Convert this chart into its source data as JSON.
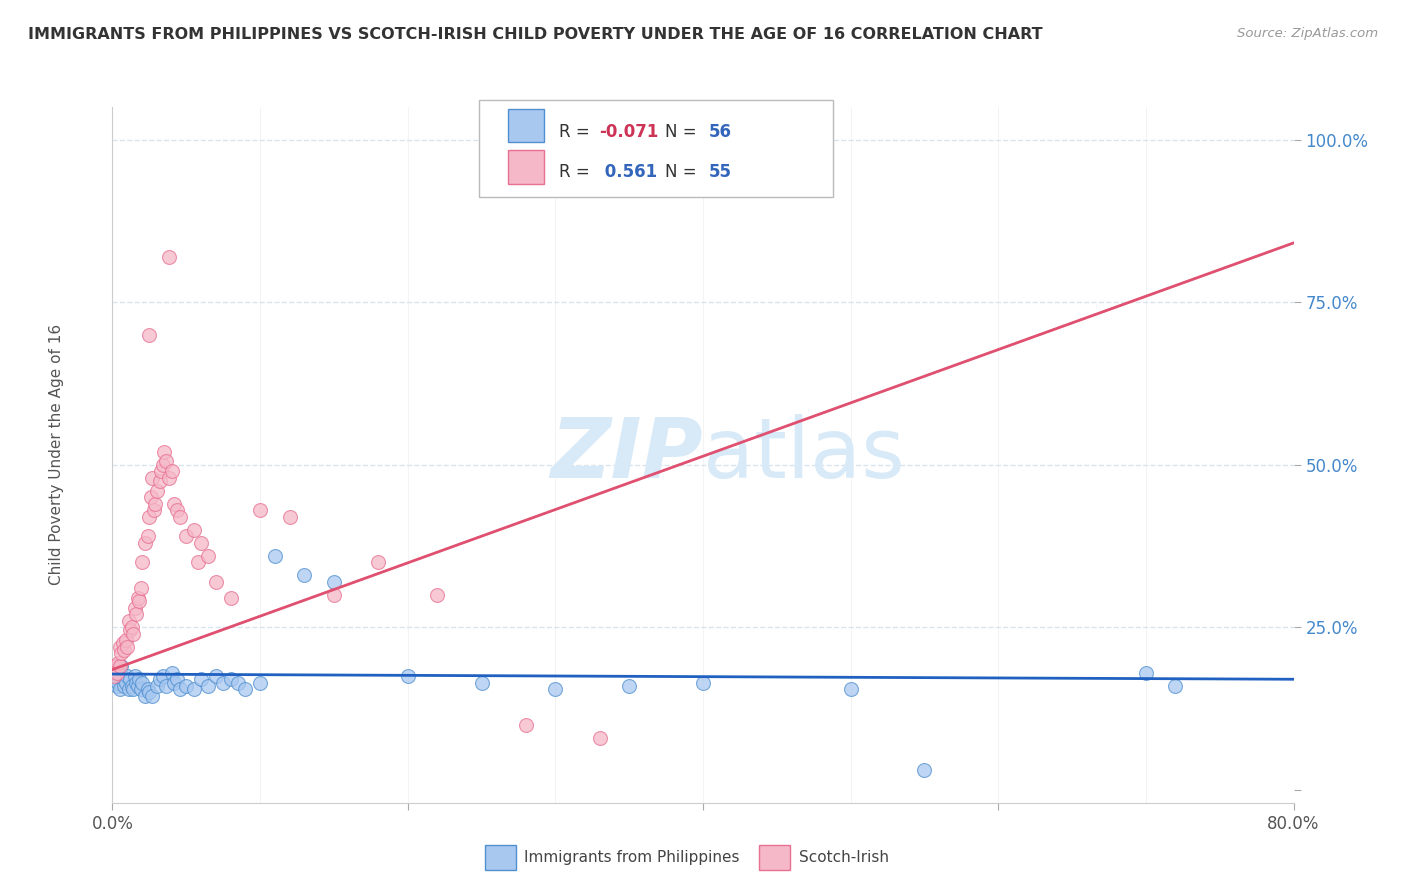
{
  "title": "IMMIGRANTS FROM PHILIPPINES VS SCOTCH-IRISH CHILD POVERTY UNDER THE AGE OF 16 CORRELATION CHART",
  "source": "Source: ZipAtlas.com",
  "ylabel": "Child Poverty Under the Age of 16",
  "xlim": [
    0.0,
    0.8
  ],
  "ylim": [
    -0.02,
    1.05
  ],
  "r_blue": -0.071,
  "n_blue": 56,
  "r_pink": 0.561,
  "n_pink": 55,
  "label_blue": "Immigrants from Philippines",
  "label_pink": "Scotch-Irish",
  "blue_color": "#a8c8f0",
  "pink_color": "#f5b8c8",
  "blue_edge_color": "#5090d0",
  "pink_edge_color": "#e87090",
  "blue_line_color": "#2060c0",
  "pink_line_color": "#e05070",
  "diag_line_color": "#d0a0b0",
  "watermark_color": "#d8eaf8",
  "background_color": "#ffffff",
  "grid_color": "#d8e4ee",
  "title_color": "#333333",
  "source_color": "#999999",
  "ytick_color": "#4488cc",
  "xtick_color": "#555555",
  "legend_text_color": "#3366bb",
  "legend_r_neg_color": "#cc3355",
  "yticks": [
    0.0,
    0.25,
    0.5,
    0.75,
    1.0
  ],
  "ytick_labels": [
    "",
    "25.0%",
    "50.0%",
    "75.0%",
    "100.0%"
  ],
  "blue_scatter": [
    [
      0.001,
      0.175
    ],
    [
      0.002,
      0.185
    ],
    [
      0.003,
      0.17
    ],
    [
      0.003,
      0.16
    ],
    [
      0.004,
      0.165
    ],
    [
      0.005,
      0.18
    ],
    [
      0.005,
      0.155
    ],
    [
      0.006,
      0.19
    ],
    [
      0.007,
      0.17
    ],
    [
      0.008,
      0.16
    ],
    [
      0.009,
      0.165
    ],
    [
      0.01,
      0.175
    ],
    [
      0.011,
      0.155
    ],
    [
      0.012,
      0.17
    ],
    [
      0.013,
      0.16
    ],
    [
      0.014,
      0.155
    ],
    [
      0.015,
      0.175
    ],
    [
      0.016,
      0.165
    ],
    [
      0.017,
      0.16
    ],
    [
      0.018,
      0.17
    ],
    [
      0.019,
      0.155
    ],
    [
      0.02,
      0.165
    ],
    [
      0.022,
      0.145
    ],
    [
      0.024,
      0.155
    ],
    [
      0.025,
      0.15
    ],
    [
      0.027,
      0.145
    ],
    [
      0.03,
      0.16
    ],
    [
      0.032,
      0.17
    ],
    [
      0.034,
      0.175
    ],
    [
      0.036,
      0.16
    ],
    [
      0.04,
      0.18
    ],
    [
      0.042,
      0.165
    ],
    [
      0.044,
      0.17
    ],
    [
      0.046,
      0.155
    ],
    [
      0.05,
      0.16
    ],
    [
      0.055,
      0.155
    ],
    [
      0.06,
      0.17
    ],
    [
      0.065,
      0.16
    ],
    [
      0.07,
      0.175
    ],
    [
      0.075,
      0.165
    ],
    [
      0.08,
      0.17
    ],
    [
      0.085,
      0.165
    ],
    [
      0.09,
      0.155
    ],
    [
      0.1,
      0.165
    ],
    [
      0.11,
      0.36
    ],
    [
      0.13,
      0.33
    ],
    [
      0.15,
      0.32
    ],
    [
      0.2,
      0.175
    ],
    [
      0.25,
      0.165
    ],
    [
      0.3,
      0.155
    ],
    [
      0.35,
      0.16
    ],
    [
      0.4,
      0.165
    ],
    [
      0.5,
      0.155
    ],
    [
      0.55,
      0.03
    ],
    [
      0.7,
      0.18
    ],
    [
      0.72,
      0.16
    ]
  ],
  "pink_scatter": [
    [
      0.001,
      0.175
    ],
    [
      0.002,
      0.19
    ],
    [
      0.003,
      0.18
    ],
    [
      0.004,
      0.195
    ],
    [
      0.005,
      0.22
    ],
    [
      0.005,
      0.19
    ],
    [
      0.006,
      0.21
    ],
    [
      0.007,
      0.225
    ],
    [
      0.008,
      0.215
    ],
    [
      0.009,
      0.23
    ],
    [
      0.01,
      0.22
    ],
    [
      0.011,
      0.26
    ],
    [
      0.012,
      0.245
    ],
    [
      0.013,
      0.25
    ],
    [
      0.014,
      0.24
    ],
    [
      0.015,
      0.28
    ],
    [
      0.016,
      0.27
    ],
    [
      0.017,
      0.295
    ],
    [
      0.018,
      0.29
    ],
    [
      0.019,
      0.31
    ],
    [
      0.02,
      0.35
    ],
    [
      0.022,
      0.38
    ],
    [
      0.024,
      0.39
    ],
    [
      0.025,
      0.42
    ],
    [
      0.026,
      0.45
    ],
    [
      0.027,
      0.48
    ],
    [
      0.028,
      0.43
    ],
    [
      0.029,
      0.44
    ],
    [
      0.03,
      0.46
    ],
    [
      0.032,
      0.475
    ],
    [
      0.033,
      0.49
    ],
    [
      0.034,
      0.5
    ],
    [
      0.035,
      0.52
    ],
    [
      0.036,
      0.505
    ],
    [
      0.038,
      0.48
    ],
    [
      0.04,
      0.49
    ],
    [
      0.042,
      0.44
    ],
    [
      0.044,
      0.43
    ],
    [
      0.046,
      0.42
    ],
    [
      0.05,
      0.39
    ],
    [
      0.055,
      0.4
    ],
    [
      0.058,
      0.35
    ],
    [
      0.06,
      0.38
    ],
    [
      0.065,
      0.36
    ],
    [
      0.07,
      0.32
    ],
    [
      0.08,
      0.295
    ],
    [
      0.1,
      0.43
    ],
    [
      0.12,
      0.42
    ],
    [
      0.15,
      0.3
    ],
    [
      0.18,
      0.35
    ],
    [
      0.22,
      0.3
    ],
    [
      0.28,
      0.1
    ],
    [
      0.33,
      0.08
    ],
    [
      0.038,
      0.82
    ],
    [
      0.025,
      0.7
    ]
  ]
}
